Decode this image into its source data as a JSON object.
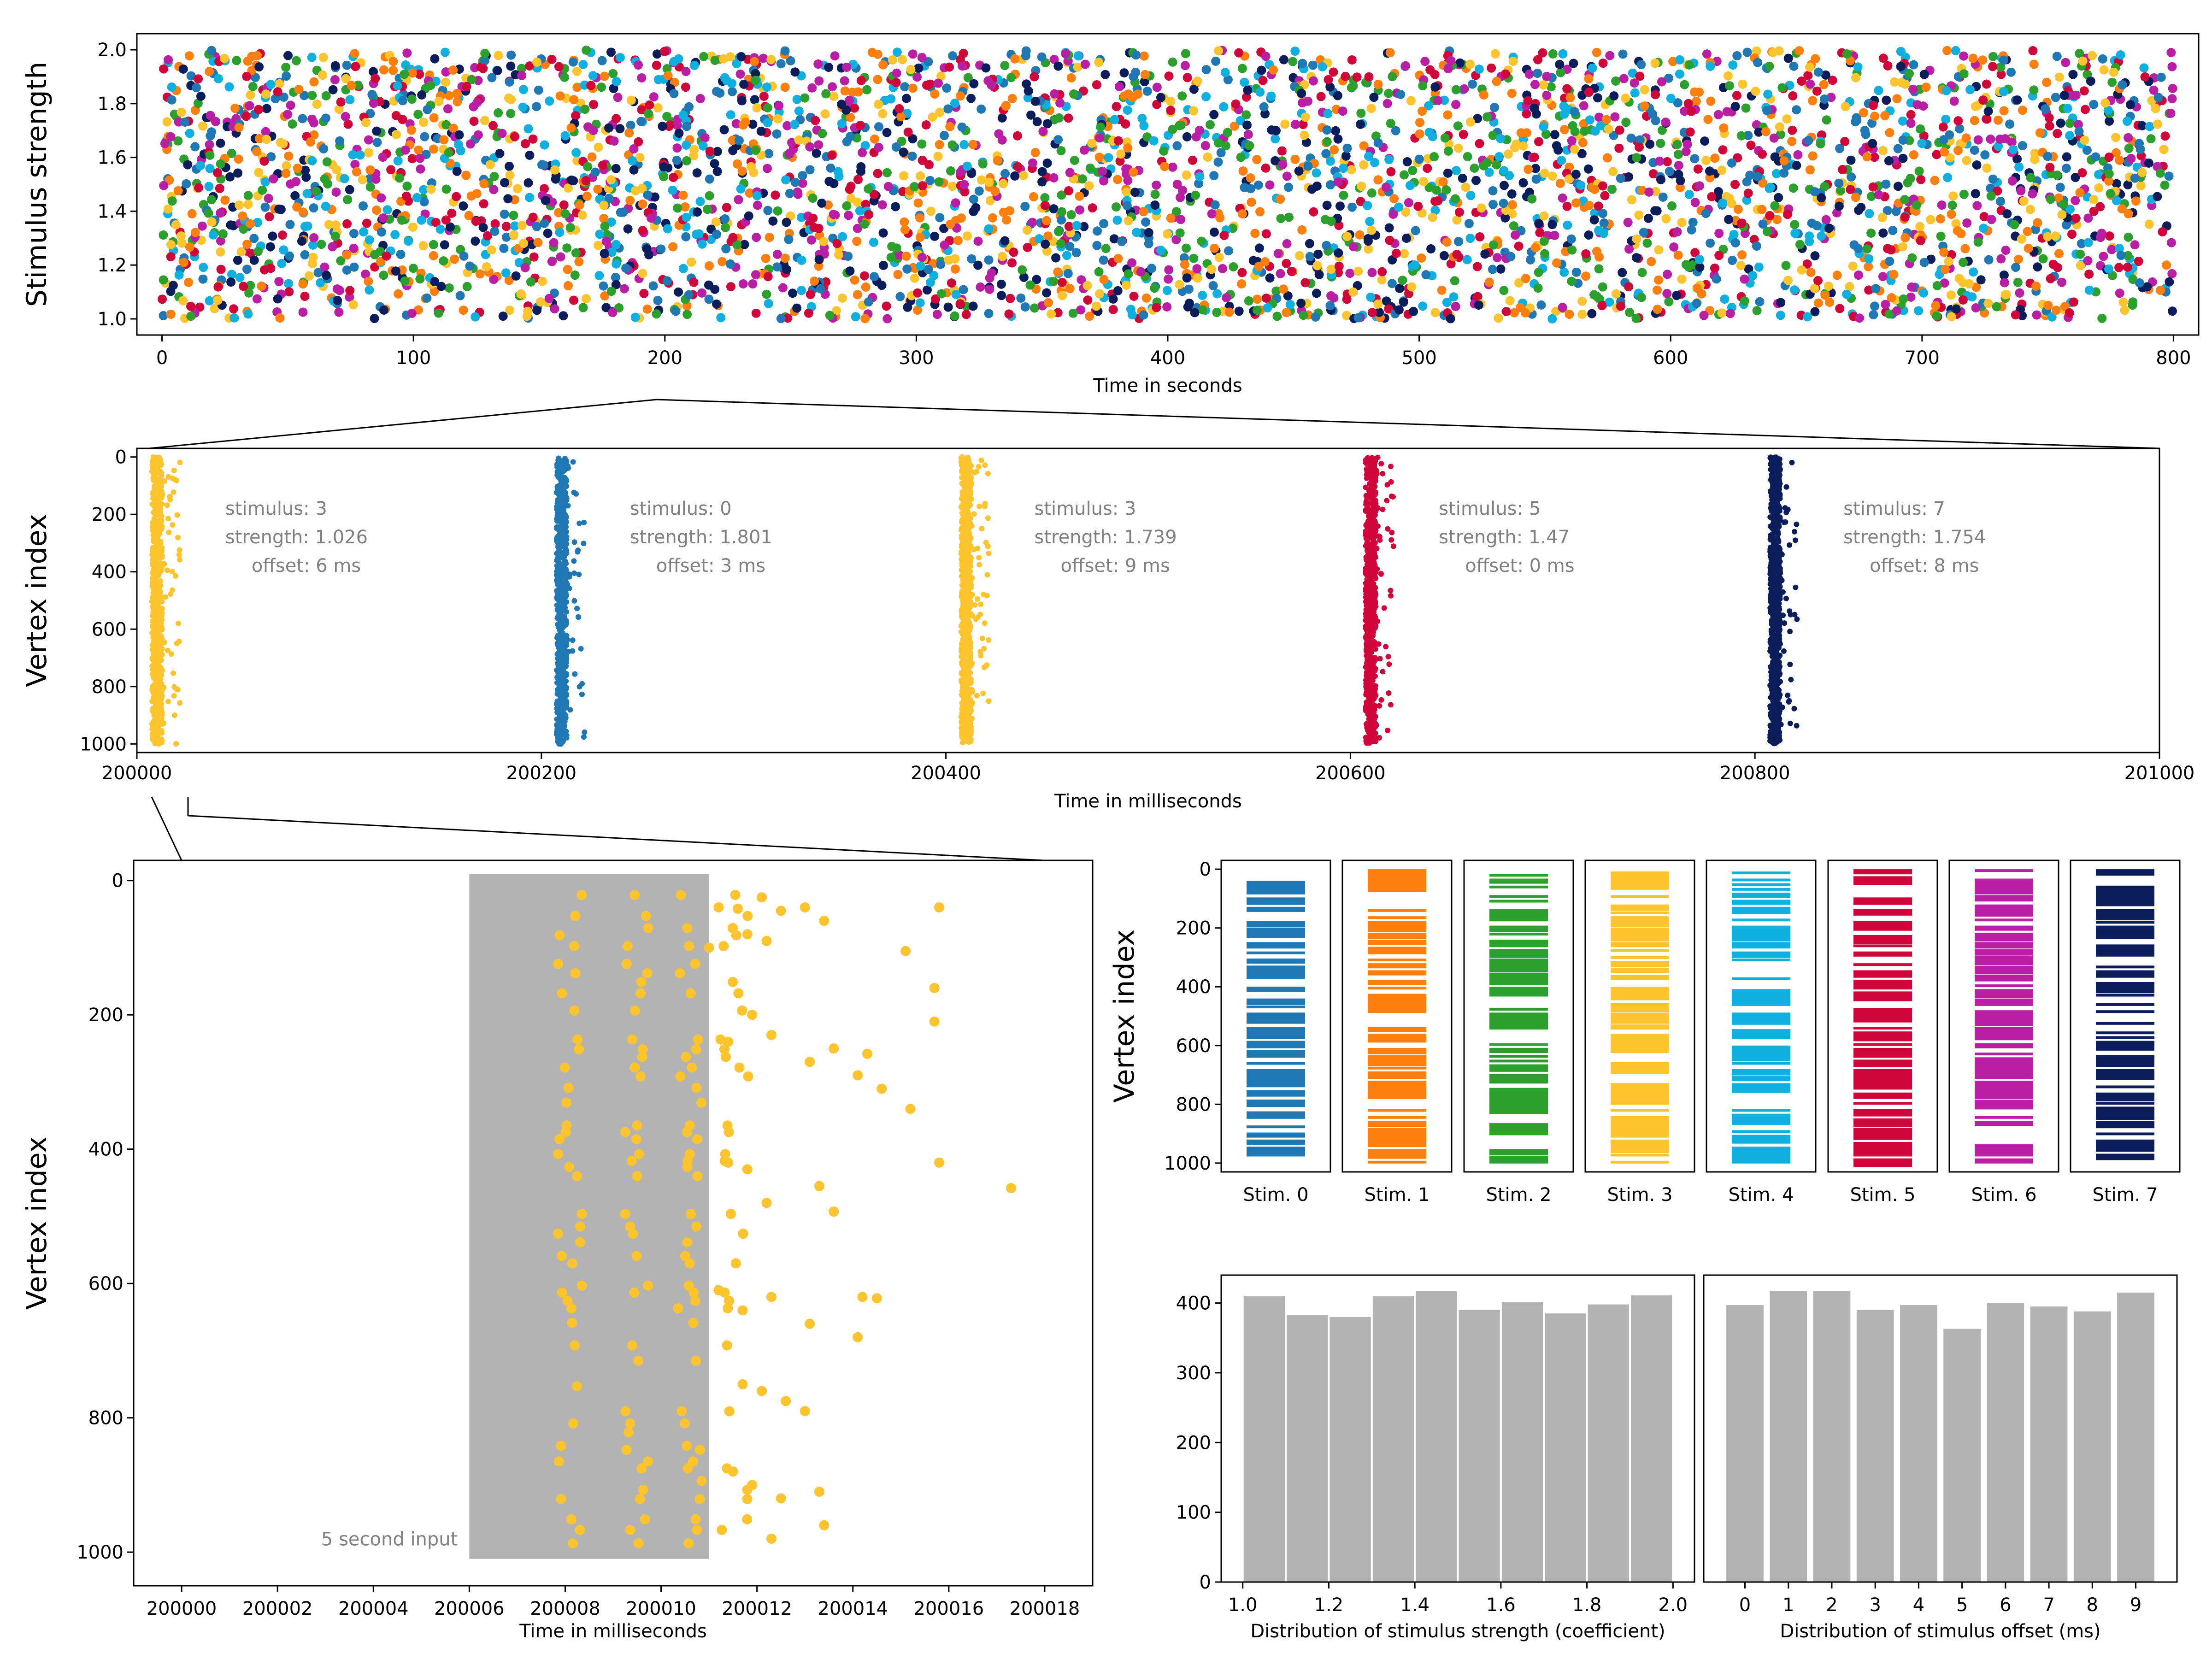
{
  "colors": {
    "palette": [
      "#1f77b4",
      "#ff7f0e",
      "#2ca02c",
      "#fdc42d",
      "#0fb0e0",
      "#d0053a",
      "#b91ea4",
      "#0b1d5a"
    ],
    "hist": "#b3b3b3",
    "shade": "#b3b3b3",
    "annotation": "#808080"
  },
  "chart_data": [
    {
      "id": "overview",
      "type": "scatter",
      "title": "",
      "xlabel": "Time in seconds",
      "ylabel": "Stimulus strength",
      "xlim": [
        -10,
        810
      ],
      "ylim": [
        0.94,
        2.06
      ],
      "xticks": [
        0,
        100,
        200,
        300,
        400,
        500,
        600,
        700,
        800
      ],
      "yticks": [
        "1.0",
        "1.2",
        "1.4",
        "1.6",
        "1.8",
        "2.0"
      ],
      "note": "One point per stimulus presentation (~4000 events), colored by stimulus id 0-7, uniformly distributed over time 0-800 s and strength 1.0-2.0",
      "n_points": 4000
    },
    {
      "id": "raster-1s",
      "type": "scatter",
      "xlabel": "Time in milliseconds",
      "ylabel": "Vertex index",
      "xlim": [
        200000,
        201000
      ],
      "ylim": [
        1000,
        0
      ],
      "xticks": [
        200000,
        200200,
        200400,
        200600,
        200800,
        201000
      ],
      "yticks": [
        0,
        200,
        400,
        600,
        800,
        1000
      ],
      "events": [
        {
          "t": 200010,
          "stimulus": 3,
          "line1": "stimulus: 3",
          "line2": "strength: 1.026",
          "line3": "offset: 6 ms"
        },
        {
          "t": 200210,
          "stimulus": 0,
          "line1": "stimulus: 0",
          "line2": "strength: 1.801",
          "line3": "offset: 3 ms"
        },
        {
          "t": 200410,
          "stimulus": 3,
          "line1": "stimulus: 3",
          "line2": "strength: 1.739",
          "line3": "offset: 9 ms"
        },
        {
          "t": 200610,
          "stimulus": 5,
          "line1": "stimulus: 5",
          "line2": "strength: 1.47",
          "line3": "offset: 0 ms"
        },
        {
          "t": 200810,
          "stimulus": 7,
          "line1": "stimulus: 7",
          "line2": "strength: 1.754",
          "line3": "offset: 8 ms"
        }
      ]
    },
    {
      "id": "raster-zoom",
      "type": "scatter",
      "xlabel": "Time in milliseconds",
      "ylabel": "Vertex index",
      "xlim": [
        199999,
        200019
      ],
      "ylim": [
        1050,
        -30
      ],
      "xticks": [
        200000,
        200002,
        200004,
        200006,
        200008,
        200010,
        200012,
        200014,
        200016,
        200018
      ],
      "yticks": [
        0,
        200,
        400,
        600,
        800,
        1000
      ],
      "shade_range": [
        200006,
        200011
      ],
      "shade_label": "5 second input",
      "burst_times": [
        200008.1,
        200009.5,
        200010.6
      ],
      "post_points": [
        [
          200011.2,
          40
        ],
        [
          200011.6,
          42
        ],
        [
          200012.1,
          25
        ],
        [
          200012.5,
          45
        ],
        [
          200013.0,
          40
        ],
        [
          200013.4,
          60
        ],
        [
          200011.0,
          100
        ],
        [
          200011.8,
          80
        ],
        [
          200012.2,
          90
        ],
        [
          200011.4,
          240
        ],
        [
          200011.9,
          200
        ],
        [
          200012.3,
          230
        ],
        [
          200013.1,
          270
        ],
        [
          200013.6,
          250
        ],
        [
          200014.1,
          290
        ],
        [
          200014.3,
          258
        ],
        [
          200014.6,
          310
        ],
        [
          200015.2,
          340
        ],
        [
          200011.4,
          420
        ],
        [
          200011.8,
          430
        ],
        [
          200012.2,
          480
        ],
        [
          200013.3,
          455
        ],
        [
          200013.6,
          493
        ],
        [
          200011.2,
          610
        ],
        [
          200011.7,
          640
        ],
        [
          200012.3,
          620
        ],
        [
          200013.1,
          660
        ],
        [
          200014.2,
          620
        ],
        [
          200014.5,
          622
        ],
        [
          200014.1,
          680
        ],
        [
          200011.7,
          750
        ],
        [
          200012.1,
          760
        ],
        [
          200012.6,
          775
        ],
        [
          200013.0,
          790
        ],
        [
          200011.5,
          880
        ],
        [
          200011.9,
          900
        ],
        [
          200012.5,
          920
        ],
        [
          200013.3,
          910
        ],
        [
          200013.4,
          960
        ],
        [
          200012.3,
          980
        ],
        [
          200015.8,
          40
        ],
        [
          200015.1,
          105
        ],
        [
          200015.7,
          160
        ],
        [
          200015.7,
          210
        ],
        [
          200015.8,
          420
        ],
        [
          200017.3,
          458
        ]
      ]
    },
    {
      "id": "stimulus-patterns",
      "type": "heatmap",
      "ylabel": "Vertex index",
      "ylim": [
        1030,
        -30
      ],
      "yticks": [
        0,
        200,
        400,
        600,
        800,
        1000
      ],
      "panels": [
        {
          "label": "Stim. 0",
          "color": "#1f77b4"
        },
        {
          "label": "Stim. 1",
          "color": "#ff7f0e"
        },
        {
          "label": "Stim. 2",
          "color": "#2ca02c"
        },
        {
          "label": "Stim. 3",
          "color": "#fdc42d"
        },
        {
          "label": "Stim. 4",
          "color": "#0fb0e0"
        },
        {
          "label": "Stim. 5",
          "color": "#d0053a"
        },
        {
          "label": "Stim. 6",
          "color": "#b91ea4"
        },
        {
          "label": "Stim. 7",
          "color": "#0b1d5a"
        }
      ]
    },
    {
      "id": "hist-strength",
      "type": "bar",
      "xlabel": "Distribution of stimulus strength (coefficient)",
      "bin_edges": [
        1.0,
        1.1,
        1.2,
        1.3,
        1.4,
        1.5,
        1.6,
        1.7,
        1.8,
        1.9,
        2.0
      ],
      "values": [
        410,
        383,
        380,
        410,
        417,
        390,
        401,
        385,
        398,
        411
      ],
      "xlim": [
        0.95,
        2.05
      ],
      "ylim": [
        0,
        440
      ],
      "xticks": [
        "1.0",
        "1.2",
        "1.4",
        "1.6",
        "1.8",
        "2.0"
      ],
      "yticks": [
        0,
        100,
        200,
        300,
        400
      ]
    },
    {
      "id": "hist-offset",
      "type": "bar",
      "xlabel": "Distribution of stimulus offset (ms)",
      "categories": [
        0,
        1,
        2,
        3,
        4,
        5,
        6,
        7,
        8,
        9
      ],
      "values": [
        397,
        417,
        417,
        390,
        397,
        363,
        400,
        395,
        388,
        415
      ],
      "xlim": [
        -0.95,
        9.95
      ],
      "ylim": [
        0,
        440
      ],
      "xticks": [
        "0",
        "1",
        "2",
        "3",
        "4",
        "5",
        "6",
        "7",
        "8",
        "9"
      ]
    }
  ]
}
